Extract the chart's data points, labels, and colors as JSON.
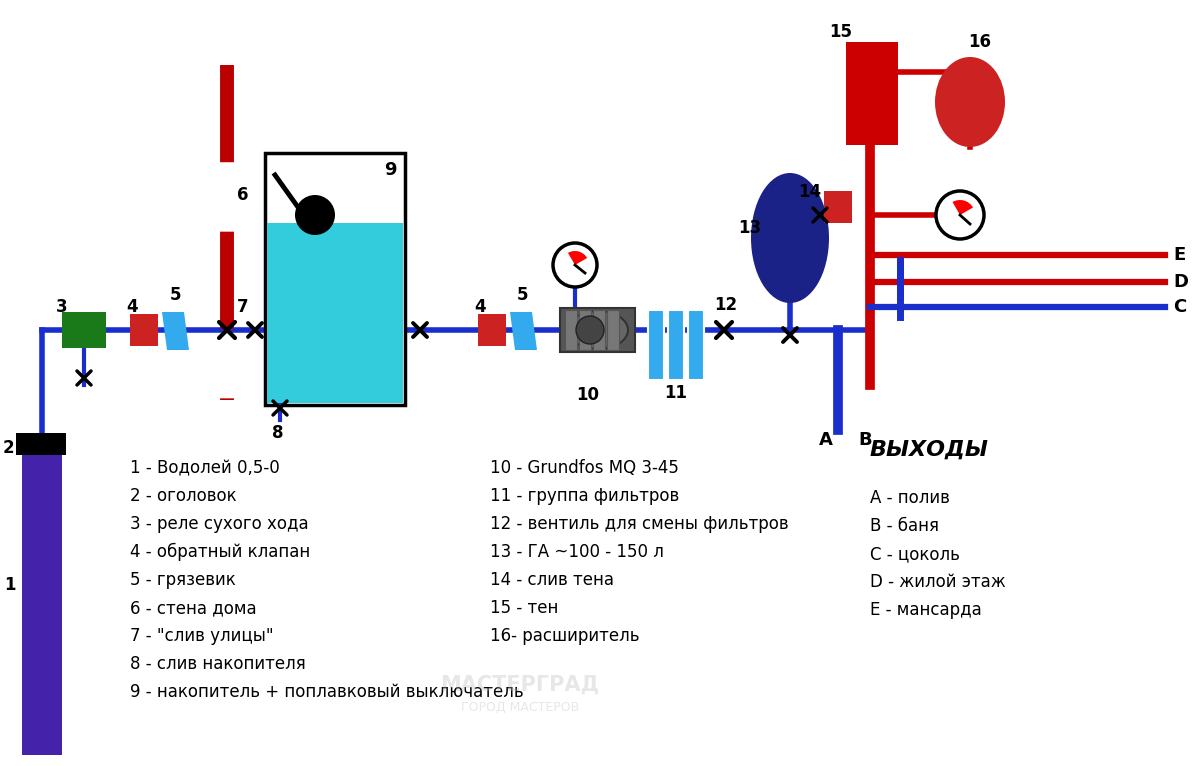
{
  "bg_color": "#ffffff",
  "pipe_blue": "#1a2ecc",
  "pipe_red": "#cc0000",
  "wall_red": "#bb0000",
  "tank_fill": "#33ccdd",
  "filter_color": "#33aaee",
  "accumulator_color": "#1a2288",
  "green_box": "#1a7a1a",
  "red_box": "#cc2222",
  "purple": "#4422aa",
  "black": "#000000",
  "label_col1": [
    "1 - Водолей 0,5-0",
    "2 - оголовок",
    "3 - реле сухого хода",
    "4 - обратный клапан",
    "5 - грязевик",
    "6 - стена дома",
    "7 - \"слив улицы\"",
    "8 - слив накопителя",
    "9 - накопитель + поплавковый выключатель"
  ],
  "label_col2": [
    "10 - Grundfos MQ 3-45",
    "11 - группа фильтров",
    "12 - вентиль для смены фильтров",
    "13 - ГА ~100 - 150 л",
    "14 - слив тена",
    "15 - тен",
    "16- расширитель"
  ],
  "label_col3_title": "ВЫХОДЫ",
  "label_col3": [
    "А - полив",
    "В - баня",
    "С - цоколь",
    "D - жилой этаж",
    "E - мансарда"
  ]
}
